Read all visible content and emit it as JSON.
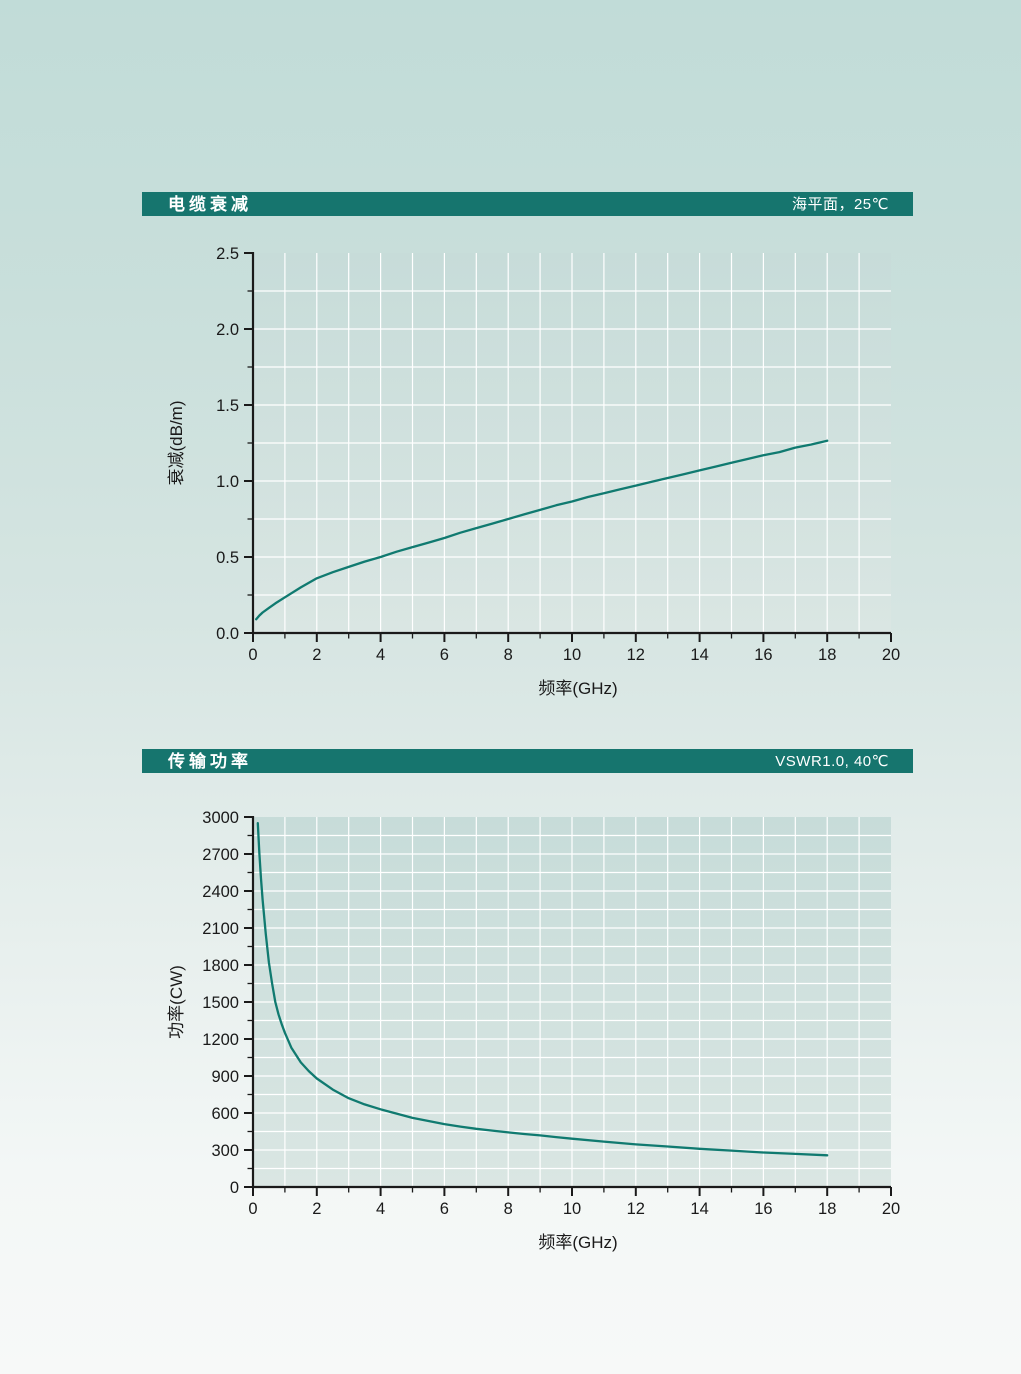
{
  "sections": [
    {
      "title": "电缆衰减",
      "condition": "海平面，25℃"
    },
    {
      "title": "传输功率",
      "condition": "VSWR1.0, 40℃"
    }
  ],
  "colors": {
    "header_bg": "#16756e",
    "header_text": "#ffffff",
    "curve": "#107a70",
    "plot_fill_top": "#c7dcd9",
    "plot_fill_bottom": "#dae6e3",
    "grid": "#ffffff",
    "axis": "#1a1a1a",
    "tick_text": "#1a1a1a"
  },
  "chart_data": [
    {
      "type": "line",
      "title": "电缆衰减",
      "subtitle": "海平面，25℃",
      "xlabel": "频率(GHz)",
      "ylabel": "衰减(dB/m)",
      "xlim": [
        0,
        20
      ],
      "ylim": [
        0,
        2.5
      ],
      "x_major_ticks": [
        0,
        2,
        4,
        6,
        8,
        10,
        12,
        14,
        16,
        18,
        20
      ],
      "x_tick_labels": [
        "0",
        "2",
        "4",
        "6",
        "8",
        "10",
        "12",
        "14",
        "16",
        "18",
        "20"
      ],
      "x_minor_step": 1,
      "y_major_ticks": [
        0,
        0.5,
        1.0,
        1.5,
        2.0,
        2.5
      ],
      "y_tick_labels": [
        "0.0",
        "0.5",
        "1.0",
        "1.5",
        "2.0",
        "2.5"
      ],
      "y_minor_step": 0.25,
      "grid": true,
      "grid_x_step": 1,
      "grid_y_step": 0.25,
      "legend_position": "none",
      "series": [
        {
          "name": "电缆衰减",
          "x": [
            0.1,
            0.2,
            0.3,
            0.5,
            0.7,
            1,
            1.5,
            2,
            2.5,
            3,
            3.5,
            4,
            4.5,
            5,
            5.5,
            6,
            6.5,
            7,
            7.5,
            8,
            8.5,
            9,
            9.5,
            10,
            10.5,
            11,
            11.5,
            12,
            12.5,
            13,
            13.5,
            14,
            14.5,
            15,
            15.5,
            16,
            16.5,
            17,
            17.5,
            18
          ],
          "y": [
            0.09,
            0.115,
            0.135,
            0.165,
            0.195,
            0.235,
            0.3,
            0.36,
            0.4,
            0.435,
            0.47,
            0.5,
            0.535,
            0.565,
            0.595,
            0.625,
            0.66,
            0.69,
            0.72,
            0.75,
            0.78,
            0.81,
            0.84,
            0.865,
            0.895,
            0.92,
            0.945,
            0.97,
            0.995,
            1.02,
            1.045,
            1.07,
            1.095,
            1.12,
            1.145,
            1.17,
            1.19,
            1.22,
            1.24,
            1.265
          ]
        }
      ]
    },
    {
      "type": "line",
      "title": "传输功率",
      "subtitle": "VSWR1.0, 40℃",
      "xlabel": "频率(GHz)",
      "ylabel": "功率(CW)",
      "xlim": [
        0,
        20
      ],
      "ylim": [
        0,
        3000
      ],
      "x_major_ticks": [
        0,
        2,
        4,
        6,
        8,
        10,
        12,
        14,
        16,
        18,
        20
      ],
      "x_tick_labels": [
        "0",
        "2",
        "4",
        "6",
        "8",
        "10",
        "12",
        "14",
        "16",
        "18",
        "20"
      ],
      "x_minor_step": 1,
      "y_major_ticks": [
        0,
        300,
        600,
        900,
        1200,
        1500,
        1800,
        2100,
        2400,
        2700,
        3000
      ],
      "y_tick_labels": [
        "0",
        "300",
        "600",
        "900",
        "1200",
        "1500",
        "1800",
        "2100",
        "2400",
        "2700",
        "3000"
      ],
      "y_minor_step": 150,
      "grid": true,
      "grid_x_step": 1,
      "grid_y_step": 150,
      "legend_position": "none",
      "series": [
        {
          "name": "传输功率",
          "x": [
            0.15,
            0.2,
            0.25,
            0.3,
            0.4,
            0.5,
            0.6,
            0.7,
            0.8,
            0.9,
            1,
            1.2,
            1.5,
            1.75,
            2,
            2.5,
            3,
            3.5,
            4,
            4.5,
            5,
            5.5,
            6,
            6.5,
            7,
            7.5,
            8,
            8.5,
            9,
            9.5,
            10,
            11,
            12,
            13,
            14,
            15,
            16,
            17,
            18
          ],
          "y": [
            2950,
            2700,
            2500,
            2330,
            2050,
            1820,
            1650,
            1500,
            1400,
            1320,
            1250,
            1130,
            1010,
            940,
            880,
            790,
            720,
            670,
            630,
            595,
            560,
            535,
            510,
            490,
            472,
            457,
            443,
            430,
            418,
            405,
            392,
            368,
            345,
            328,
            310,
            295,
            280,
            268,
            257
          ]
        }
      ]
    }
  ]
}
